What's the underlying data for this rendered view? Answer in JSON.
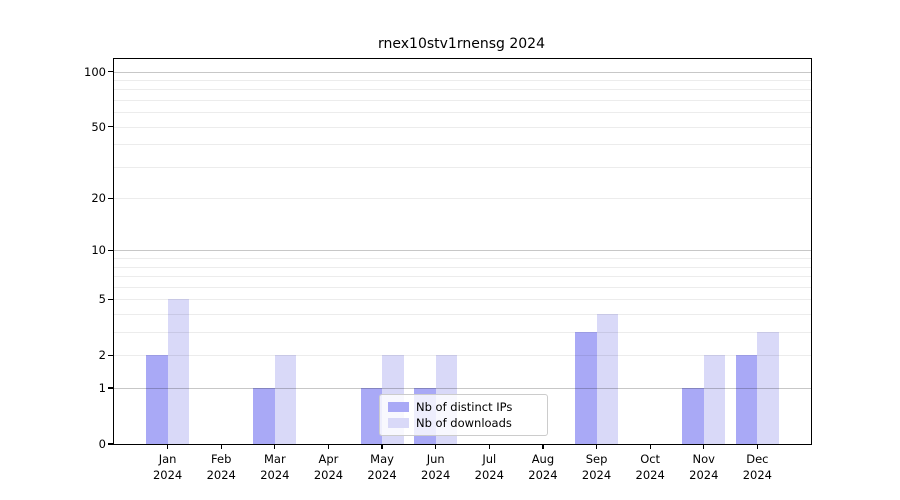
{
  "chart_data": {
    "type": "bar",
    "title": "rnex10stv1rnensg 2024",
    "categories": [
      "Jan",
      "Feb",
      "Mar",
      "Apr",
      "May",
      "Jun",
      "Jul",
      "Aug",
      "Sep",
      "Oct",
      "Nov",
      "Dec"
    ],
    "year_label": "2024",
    "series": [
      {
        "name": "Nb of distinct IPs",
        "color": "#a9a9f6",
        "values": [
          2,
          0,
          1,
          0,
          1,
          1,
          0,
          0,
          3,
          0,
          1,
          2
        ]
      },
      {
        "name": "Nb of downloads",
        "color": "#d9d9f8",
        "values": [
          5,
          0,
          2,
          0,
          2,
          2,
          0,
          0,
          4,
          0,
          2,
          3
        ]
      }
    ],
    "xlabel": "",
    "ylabel": "",
    "yscale": "log10(1+x)",
    "yticks": [
      0,
      1,
      2,
      5,
      10,
      20,
      50,
      100
    ],
    "ylim": [
      0,
      117
    ],
    "grid_major": [
      1,
      10,
      100
    ],
    "grid_minor": [
      2,
      3,
      4,
      5,
      6,
      7,
      8,
      9,
      20,
      30,
      40,
      50,
      60,
      70,
      80,
      90
    ],
    "grid": "on",
    "legend_position": "lower center",
    "bar_width_frac": 0.4
  }
}
